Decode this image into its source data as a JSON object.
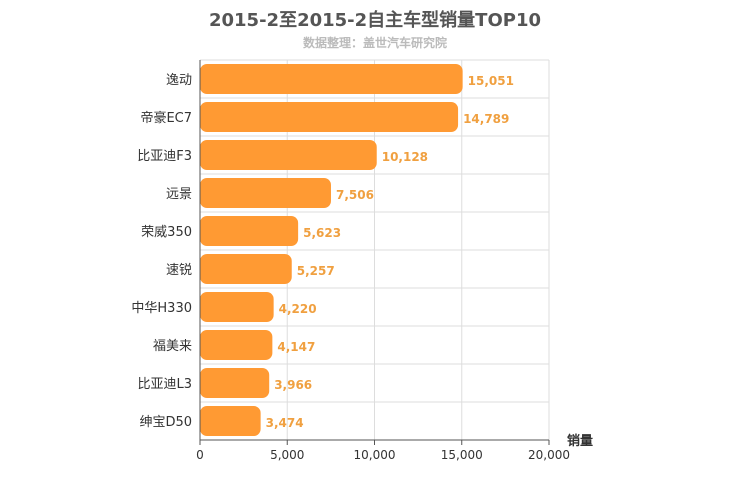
{
  "chart_data": {
    "type": "bar",
    "orientation": "horizontal",
    "title": "2015-2至2015-2自主车型销量TOP10",
    "subtitle": "数据整理：盖世汽车研究院",
    "xlabel": "销量",
    "ylabel": "",
    "categories": [
      "逸动",
      "帝豪EC7",
      "比亚迪F3",
      "远景",
      "荣威350",
      "速锐",
      "中华H330",
      "福美来",
      "比亚迪L3",
      "绅宝D50"
    ],
    "values": [
      15051,
      14789,
      10128,
      7506,
      5623,
      5257,
      4220,
      4147,
      3966,
      3474
    ],
    "value_labels": [
      "15,051",
      "14,789",
      "10,128",
      "7,506",
      "5,623",
      "5,257",
      "4,220",
      "4,147",
      "3,966",
      "3,474"
    ],
    "xlim": [
      0,
      20000
    ],
    "xticks": [
      0,
      5000,
      10000,
      15000,
      20000
    ],
    "xtick_labels": [
      "0",
      "5,000",
      "10,000",
      "15,000",
      "20,000"
    ],
    "grid": true,
    "bar_color": "#ff9a33",
    "value_label_color": "#f0a040"
  }
}
